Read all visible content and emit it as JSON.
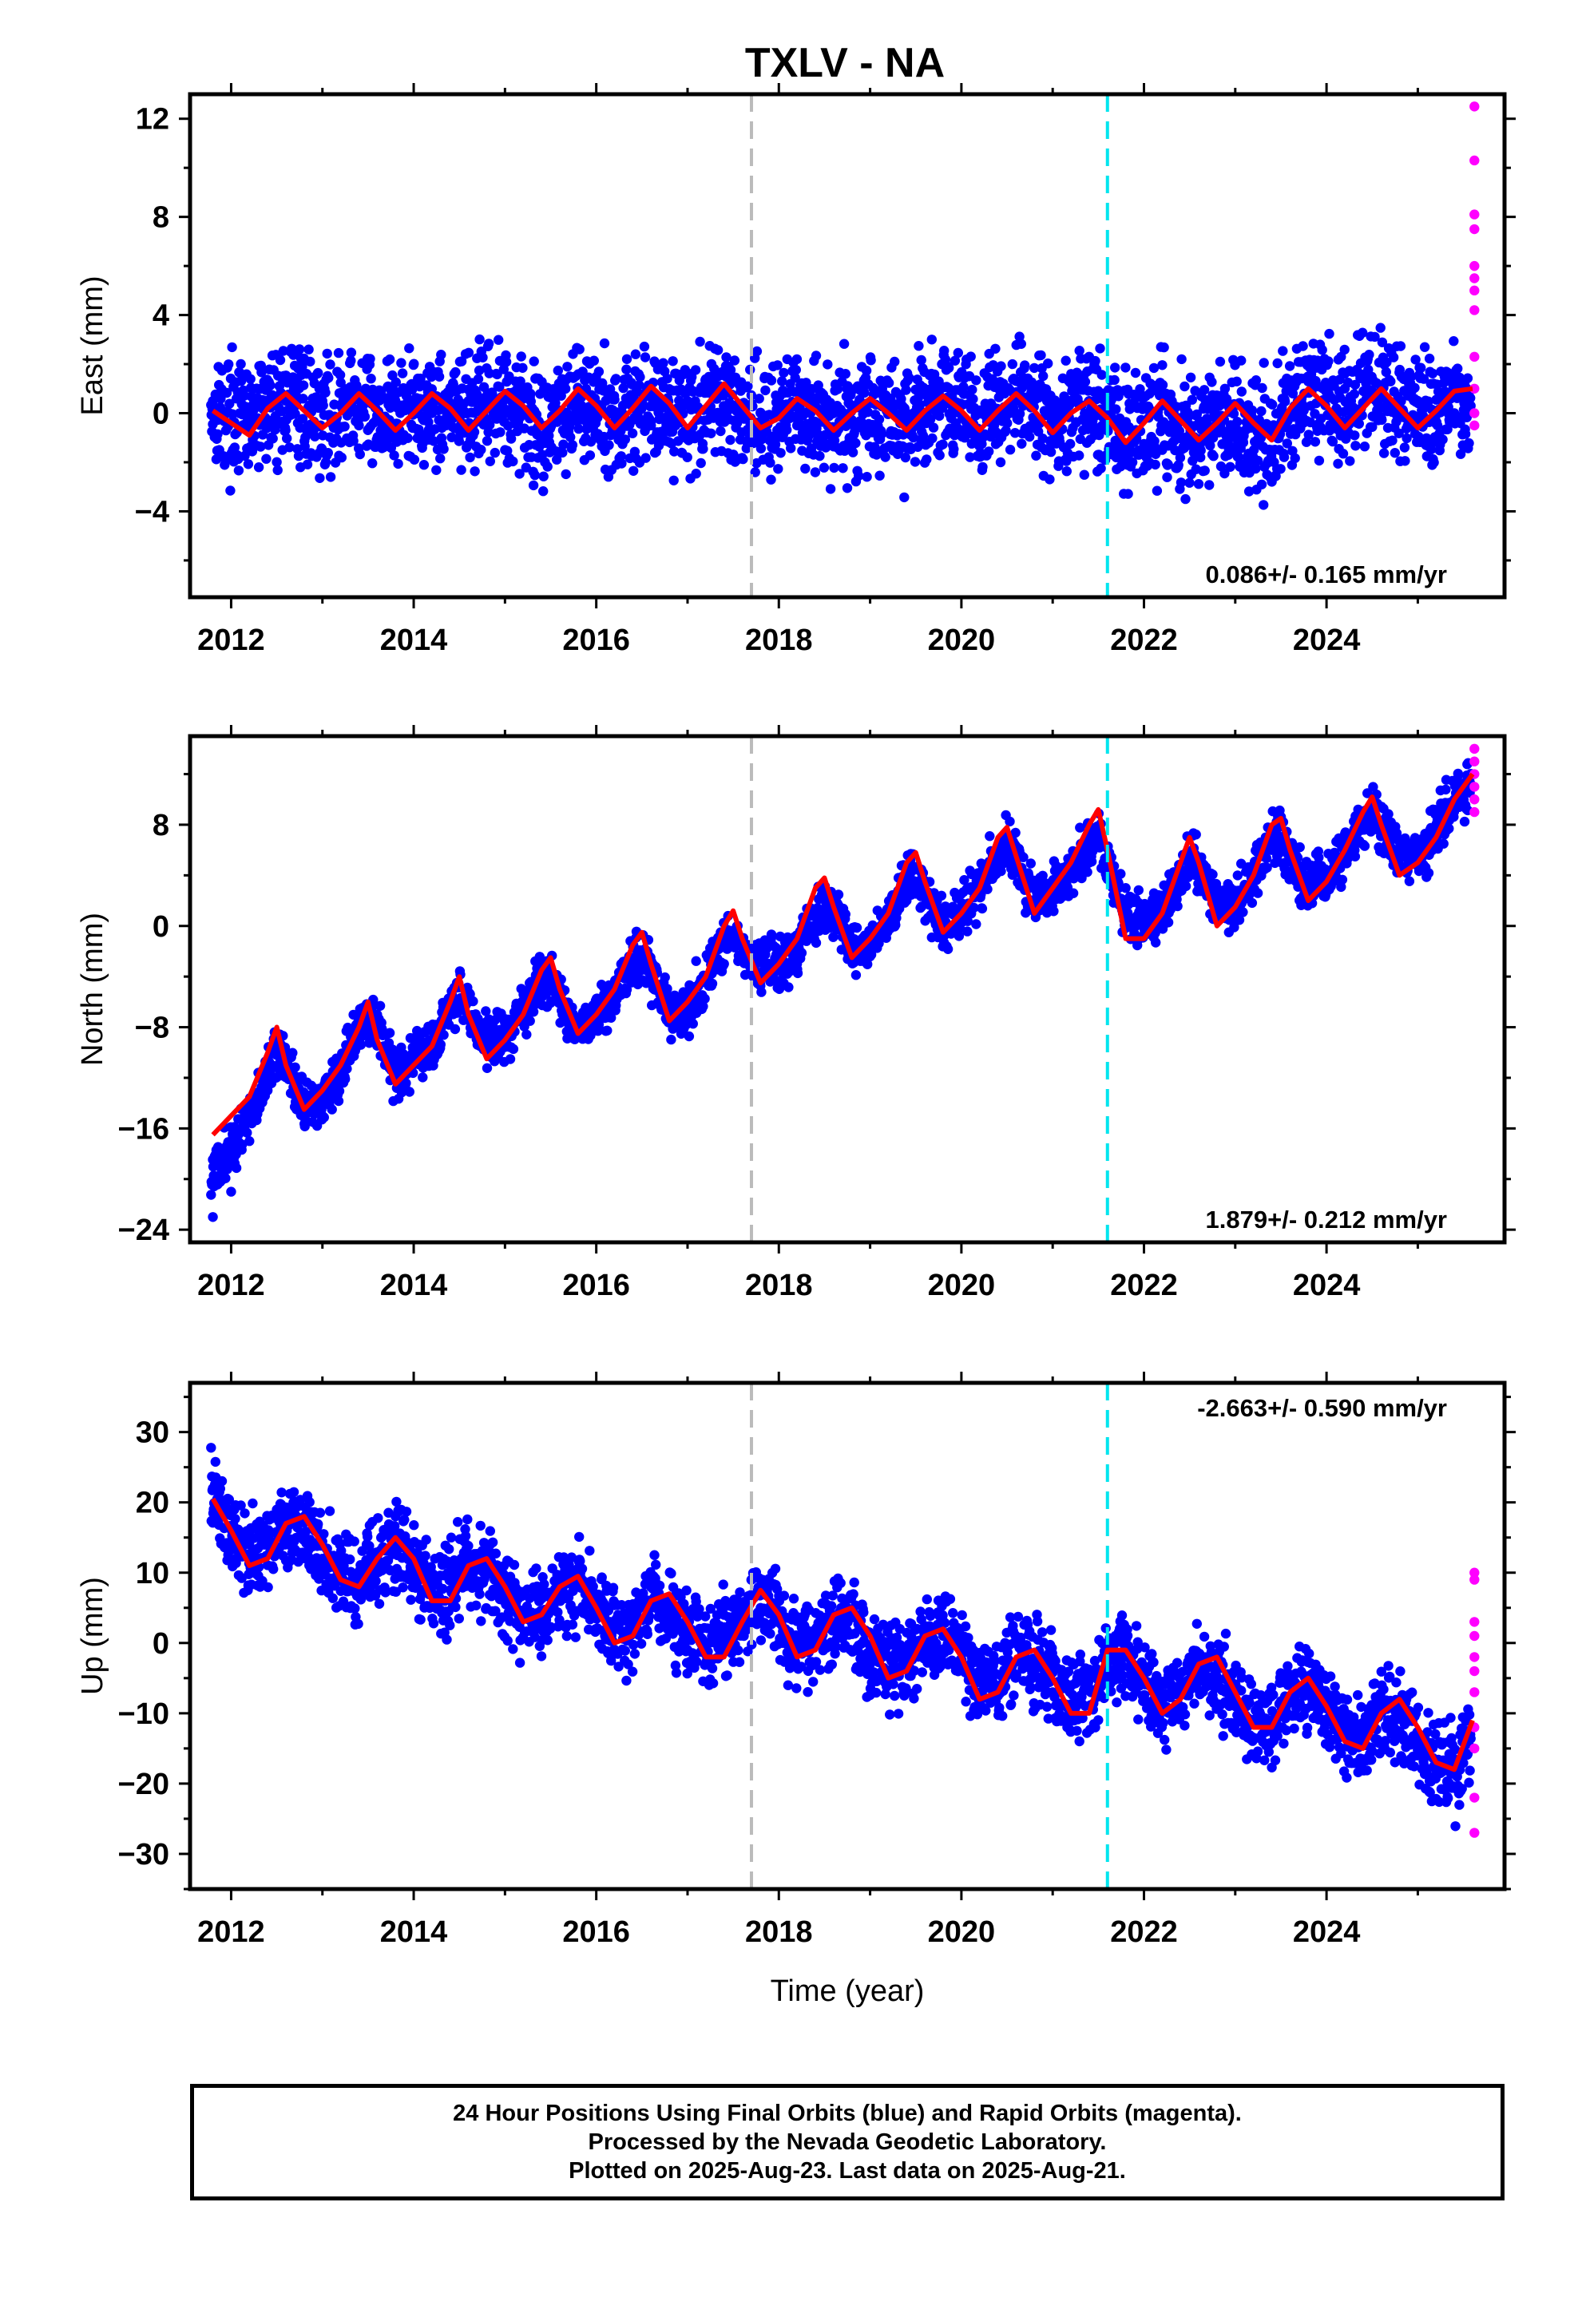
{
  "chart_data": {
    "type": "scatter",
    "title": "TXLV - NA",
    "xlabel": "Time (year)",
    "xlim": [
      2011.55,
      2025.95
    ],
    "x_ticks": [
      2012,
      2014,
      2016,
      2018,
      2020,
      2022,
      2024
    ],
    "reference_lines": [
      {
        "x": 2017.7,
        "color": "#bbbbbb",
        "style": "dashed"
      },
      {
        "x": 2021.6,
        "color": "#00e5ee",
        "style": "dashed"
      }
    ],
    "colors": {
      "final_orbits": "#0000ff",
      "rapid_orbits": "#ff00ff",
      "model_fit": "#ff0000"
    },
    "panels": [
      {
        "id": "east",
        "ylabel": "East (mm)",
        "ylim": [
          -7.5,
          13
        ],
        "y_ticks": [
          -4,
          0,
          4,
          8,
          12
        ],
        "rate_label": "0.086+/- 0.165 mm/yr",
        "rate_position": "bottom-right",
        "series": [
          {
            "name": "Final Orbits",
            "color": "#0000ff",
            "x": [
              2011.8,
              2012.2,
              2012.6,
              2013.0,
              2013.4,
              2013.8,
              2014.2,
              2014.6,
              2015.0,
              2015.4,
              2015.8,
              2016.2,
              2016.6,
              2017.0,
              2017.4,
              2017.8,
              2018.2,
              2018.6,
              2019.0,
              2019.4,
              2019.8,
              2020.2,
              2020.6,
              2021.0,
              2021.4,
              2021.8,
              2022.2,
              2022.6,
              2023.0,
              2023.4,
              2023.8,
              2024.2,
              2024.6,
              2025.0,
              2025.4
            ],
            "y": [
              0.5,
              0.0,
              0.5,
              0.5,
              -0.5,
              0.5,
              0.0,
              0.5,
              0.0,
              -0.5,
              0.5,
              0.0,
              -0.5,
              0.5,
              0.0,
              0.0,
              -0.5,
              0.0,
              -0.5,
              0.0,
              0.5,
              0.0,
              0.5,
              0.0,
              0.5,
              -0.5,
              -1.5,
              -0.5,
              -1.0,
              -1.5,
              1.5,
              1.0,
              1.0,
              0.5,
              0.0
            ]
          },
          {
            "name": "Rapid Orbits",
            "color": "#ff00ff",
            "x": [
              2025.62,
              2025.62,
              2025.62,
              2025.62,
              2025.62,
              2025.62,
              2025.62,
              2025.62,
              2025.62,
              2025.62,
              2025.62,
              2025.62
            ],
            "y": [
              12.5,
              10.3,
              8.1,
              7.5,
              6.0,
              5.5,
              5.0,
              4.2,
              2.3,
              1.0,
              0.0,
              -0.5
            ]
          },
          {
            "name": "Model Fit",
            "color": "#ff0000",
            "x": [
              2011.8,
              2012.0,
              2012.2,
              2012.4,
              2012.6,
              2012.8,
              2013.0,
              2013.2,
              2013.4,
              2013.6,
              2013.8,
              2014.0,
              2014.2,
              2014.4,
              2014.6,
              2014.8,
              2015.0,
              2015.2,
              2015.4,
              2015.6,
              2015.8,
              2016.0,
              2016.2,
              2016.4,
              2016.6,
              2016.8,
              2017.0,
              2017.2,
              2017.4,
              2017.6,
              2017.8,
              2018.0,
              2018.2,
              2018.4,
              2018.6,
              2018.8,
              2019.0,
              2019.2,
              2019.4,
              2019.6,
              2019.8,
              2020.0,
              2020.2,
              2020.4,
              2020.6,
              2020.8,
              2021.0,
              2021.2,
              2021.4,
              2021.6,
              2021.8,
              2022.0,
              2022.2,
              2022.4,
              2022.6,
              2022.8,
              2023.0,
              2023.2,
              2023.4,
              2023.6,
              2023.8,
              2024.0,
              2024.2,
              2024.4,
              2024.6,
              2024.8,
              2025.0,
              2025.2,
              2025.4,
              2025.6
            ],
            "y": [
              0.1,
              -0.4,
              -0.9,
              0.2,
              0.8,
              0.1,
              -0.6,
              0.0,
              0.8,
              0.1,
              -0.7,
              0.0,
              0.8,
              0.2,
              -0.7,
              0.1,
              0.9,
              0.3,
              -0.6,
              0.1,
              1.0,
              0.3,
              -0.6,
              0.2,
              1.1,
              0.4,
              -0.6,
              0.3,
              1.2,
              0.3,
              -0.6,
              -0.2,
              0.6,
              0.1,
              -0.7,
              0.0,
              0.6,
              0.0,
              -0.7,
              0.1,
              0.7,
              0.1,
              -0.7,
              0.1,
              0.8,
              0.1,
              -0.8,
              0.0,
              0.5,
              -0.2,
              -1.2,
              -0.4,
              0.5,
              -0.3,
              -1.1,
              -0.4,
              0.4,
              -0.4,
              -1.1,
              0.2,
              1.0,
              0.3,
              -0.6,
              0.2,
              1.0,
              0.2,
              -0.6,
              0.1,
              0.9,
              1.0
            ]
          }
        ]
      },
      {
        "id": "north",
        "ylabel": "North (mm)",
        "ylim": [
          -25,
          15
        ],
        "y_ticks": [
          -24,
          -16,
          -8,
          0,
          8
        ],
        "rate_label": "1.879+/- 0.212 mm/yr",
        "rate_position": "bottom-right",
        "series": [
          {
            "name": "Final Orbits",
            "color": "#0000ff",
            "x": [
              2011.8,
              2012.0,
              2012.2,
              2012.4,
              2012.6,
              2012.8,
              2013.0,
              2013.2,
              2013.4,
              2013.6,
              2013.8,
              2014.2,
              2014.6,
              2015.0,
              2015.4,
              2015.8,
              2016.2,
              2016.6,
              2017.0,
              2017.4,
              2017.8,
              2018.2,
              2018.6,
              2019.0,
              2019.4,
              2019.8,
              2020.2,
              2020.6,
              2021.0,
              2021.4,
              2021.8,
              2022.2,
              2022.6,
              2023.0,
              2023.4,
              2023.8,
              2024.2,
              2024.6,
              2025.0,
              2025.4
            ],
            "y": [
              -23,
              -21,
              -17,
              -13,
              -10,
              -14,
              -15,
              -12,
              -9,
              -7,
              -11,
              -9,
              -6,
              -8,
              -5,
              -8,
              -6,
              -4,
              -7,
              -3,
              -2,
              -3,
              0,
              -2,
              2,
              0,
              3,
              5,
              2,
              5,
              3,
              1,
              4,
              2,
              6,
              4,
              6,
              8,
              6,
              10
            ]
          },
          {
            "name": "Rapid Orbits",
            "color": "#ff00ff",
            "x": [
              2025.62,
              2025.62,
              2025.62,
              2025.62,
              2025.62,
              2025.62
            ],
            "y": [
              14,
              13,
              12,
              11,
              10,
              9
            ]
          },
          {
            "name": "Model Fit",
            "color": "#ff0000",
            "x": [
              2011.8,
              2012.0,
              2012.2,
              2012.4,
              2012.5,
              2012.6,
              2012.8,
              2013.0,
              2013.2,
              2013.4,
              2013.5,
              2013.6,
              2013.8,
              2014.0,
              2014.2,
              2014.4,
              2014.5,
              2014.6,
              2014.8,
              2015.0,
              2015.2,
              2015.4,
              2015.5,
              2015.6,
              2015.8,
              2016.0,
              2016.2,
              2016.4,
              2016.5,
              2016.6,
              2016.8,
              2017.0,
              2017.2,
              2017.4,
              2017.5,
              2017.6,
              2017.8,
              2018.0,
              2018.2,
              2018.4,
              2018.5,
              2018.6,
              2018.8,
              2019.0,
              2019.2,
              2019.4,
              2019.5,
              2019.6,
              2019.8,
              2020.0,
              2020.2,
              2020.4,
              2020.5,
              2020.6,
              2020.8,
              2021.0,
              2021.2,
              2021.4,
              2021.5,
              2021.6,
              2021.8,
              2022.0,
              2022.2,
              2022.4,
              2022.5,
              2022.6,
              2022.8,
              2023.0,
              2023.2,
              2023.4,
              2023.5,
              2023.6,
              2023.8,
              2024.0,
              2024.2,
              2024.4,
              2024.5,
              2024.6,
              2024.8,
              2025.0,
              2025.2,
              2025.4,
              2025.6
            ],
            "y": [
              -16.5,
              -15,
              -13.5,
              -10,
              -8,
              -11,
              -14.5,
              -13,
              -11,
              -8,
              -6,
              -9,
              -12.5,
              -11,
              -9.5,
              -6,
              -4,
              -7,
              -10.5,
              -9,
              -7,
              -3.5,
              -2.5,
              -5,
              -8.5,
              -7,
              -5,
              -1.5,
              -0.5,
              -3,
              -7.5,
              -6,
              -4,
              0,
              1.2,
              -1,
              -4.5,
              -3,
              -1,
              3,
              3.8,
              1.5,
              -2.5,
              -1,
              1,
              5,
              5.8,
              3.5,
              -0.5,
              1,
              3,
              7,
              7.8,
              5.5,
              1,
              3,
              5,
              8,
              9.2,
              6,
              -1,
              -1,
              1,
              5,
              7,
              5,
              0,
              1.5,
              4,
              8,
              8.5,
              6,
              2,
              3.5,
              6,
              9,
              10.2,
              8,
              4,
              5,
              7,
              10,
              12
            ]
          }
        ]
      },
      {
        "id": "up",
        "ylabel": "Up (mm)",
        "ylim": [
          -35,
          37
        ],
        "y_ticks": [
          -30,
          -20,
          -10,
          0,
          10,
          20,
          30
        ],
        "rate_label": "-2.663+/- 0.590 mm/yr",
        "rate_position": "top-right",
        "series": [
          {
            "name": "Final Orbits",
            "color": "#0000ff",
            "x": [
              2011.8,
              2012.2,
              2012.6,
              2013.0,
              2013.4,
              2013.8,
              2014.2,
              2014.6,
              2015.0,
              2015.4,
              2015.8,
              2016.2,
              2016.6,
              2017.0,
              2017.4,
              2017.8,
              2018.2,
              2018.6,
              2019.0,
              2019.4,
              2019.8,
              2020.2,
              2020.6,
              2021.0,
              2021.4,
              2021.8,
              2022.2,
              2022.6,
              2023.0,
              2023.4,
              2023.8,
              2024.2,
              2024.6,
              2025.0,
              2025.4
            ],
            "y": [
              22,
              14,
              18,
              12,
              10,
              14,
              8,
              12,
              6,
              4,
              8,
              2,
              5,
              -1,
              4,
              5,
              0,
              3,
              -3,
              -1,
              1,
              -4,
              0,
              -7,
              -5,
              -2,
              -8,
              -4,
              -9,
              -11,
              -6,
              -13,
              -10,
              -16,
              -18
            ]
          },
          {
            "name": "Rapid Orbits",
            "color": "#ff00ff",
            "x": [
              2025.62,
              2025.62,
              2025.62,
              2025.62,
              2025.62,
              2025.62,
              2025.62,
              2025.62,
              2025.62,
              2025.62,
              2025.62
            ],
            "y": [
              10,
              9,
              3,
              1,
              -2,
              -4,
              -7,
              -12,
              -15,
              -22,
              -27
            ]
          },
          {
            "name": "Model Fit",
            "color": "#ff0000",
            "x": [
              2011.8,
              2012.0,
              2012.2,
              2012.4,
              2012.6,
              2012.8,
              2013.0,
              2013.2,
              2013.4,
              2013.6,
              2013.8,
              2014.0,
              2014.2,
              2014.4,
              2014.6,
              2014.8,
              2015.0,
              2015.2,
              2015.4,
              2015.6,
              2015.8,
              2016.0,
              2016.2,
              2016.4,
              2016.6,
              2016.8,
              2017.0,
              2017.2,
              2017.4,
              2017.6,
              2017.8,
              2018.0,
              2018.2,
              2018.4,
              2018.6,
              2018.8,
              2019.0,
              2019.2,
              2019.4,
              2019.6,
              2019.8,
              2020.0,
              2020.2,
              2020.4,
              2020.6,
              2020.8,
              2021.0,
              2021.2,
              2021.4,
              2021.6,
              2021.8,
              2022.0,
              2022.2,
              2022.4,
              2022.6,
              2022.8,
              2023.0,
              2023.2,
              2023.4,
              2023.6,
              2023.8,
              2024.0,
              2024.2,
              2024.4,
              2024.6,
              2024.8,
              2025.0,
              2025.2,
              2025.4,
              2025.6
            ],
            "y": [
              20.5,
              16,
              11,
              12,
              17,
              18,
              14,
              9,
              8,
              12,
              15,
              12,
              6,
              6,
              11,
              12,
              8,
              3,
              4,
              8,
              9.5,
              5,
              0,
              1,
              6,
              7,
              3,
              -2,
              -2,
              3,
              7.5,
              4,
              -2,
              -1,
              4,
              5,
              1,
              -5,
              -4,
              1,
              2,
              -2,
              -8,
              -7,
              -2,
              -1,
              -5,
              -10,
              -10,
              -1,
              -1,
              -5,
              -10,
              -8,
              -3,
              -2,
              -7,
              -12,
              -12,
              -7,
              -5,
              -9,
              -14,
              -15,
              -10,
              -8,
              -12,
              -17,
              -18,
              -11
            ]
          }
        ]
      }
    ]
  },
  "footer": {
    "line1": "24 Hour Positions Using Final Orbits (blue) and Rapid Orbits (magenta).",
    "line2": "Processed by the Nevada Geodetic Laboratory.",
    "line3": "Plotted on 2025-Aug-23. Last data on 2025-Aug-21."
  }
}
